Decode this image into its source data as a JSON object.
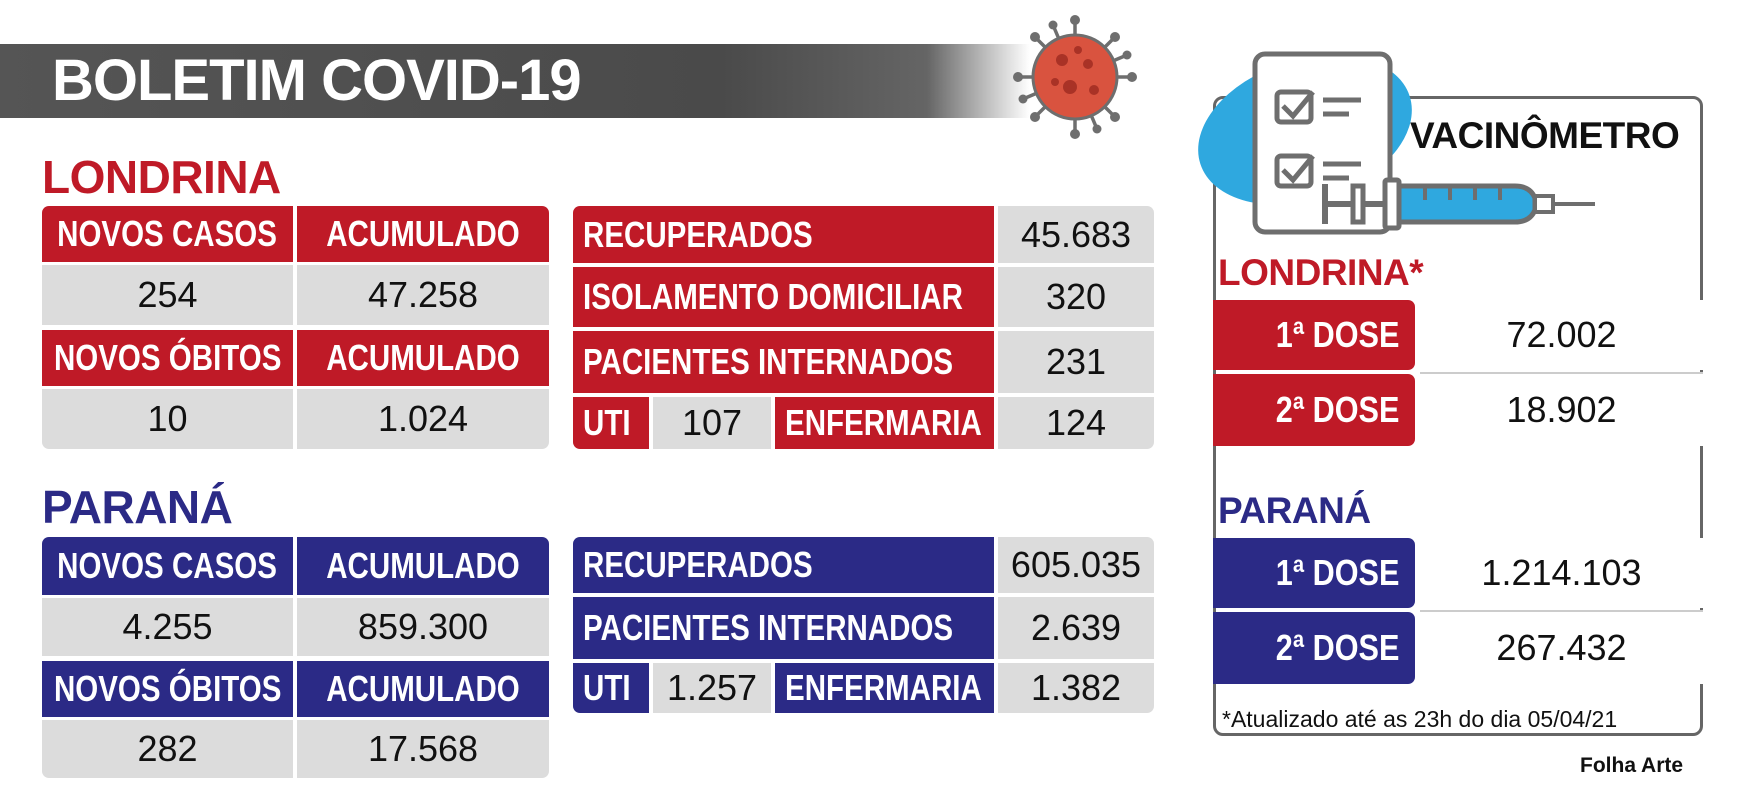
{
  "title": "BOLETIM COVID-19",
  "londrina": {
    "title": "LONDRINA",
    "novos_casos_label": "NOVOS CASOS",
    "acumulado_label": "ACUMULADO",
    "novos_casos": "254",
    "casos_acumulado": "47.258",
    "novos_obitos_label": "NOVOS ÓBITOS",
    "novos_obitos": "10",
    "obitos_acumulado": "1.024",
    "recuperados_label": "RECUPERADOS",
    "recuperados": "45.683",
    "isolamento_label": "ISOLAMENTO DOMICILIAR",
    "isolamento": "320",
    "internados_label": "PACIENTES INTERNADOS",
    "internados": "231",
    "uti_label": "UTI",
    "uti": "107",
    "enfermaria_label": "ENFERMARIA",
    "enfermaria": "124"
  },
  "parana": {
    "title": "PARANÁ",
    "novos_casos_label": "NOVOS CASOS",
    "acumulado_label": "ACUMULADO",
    "novos_casos": "4.255",
    "casos_acumulado": "859.300",
    "novos_obitos_label": "NOVOS ÓBITOS",
    "novos_obitos": "282",
    "obitos_acumulado": "17.568",
    "recuperados_label": "RECUPERADOS",
    "recuperados": "605.035",
    "internados_label": "PACIENTES INTERNADOS",
    "internados": "2.639",
    "uti_label": "UTI",
    "uti": "1.257",
    "enfermaria_label": "ENFERMARIA",
    "enfermaria": "1.382"
  },
  "vacinometro": {
    "title": "VACINÔMETRO",
    "londrina_title": "LONDRINA*",
    "londrina_dose1_label": "1ª DOSE",
    "londrina_dose1": "72.002",
    "londrina_dose2_label": "2ª DOSE",
    "londrina_dose2": "18.902",
    "parana_title": "PARANÁ",
    "parana_dose1_label": "1ª DOSE",
    "parana_dose1": "1.214.103",
    "parana_dose2_label": "2ª DOSE",
    "parana_dose2": "267.432",
    "footnote": "*Atualizado até as 23h do dia 05/04/21"
  },
  "credit": "Folha Arte",
  "colors": {
    "londrina_red": "#bf1a27",
    "parana_blue": "#2b2a86",
    "value_gray": "#dcdcdc",
    "banner_gray": "#4a4a4a",
    "virus_red": "#d9533f",
    "syringe_blue": "#2fa8df"
  },
  "icons": [
    "virus-icon",
    "vaccine-checklist-icon",
    "syringe-icon"
  ]
}
